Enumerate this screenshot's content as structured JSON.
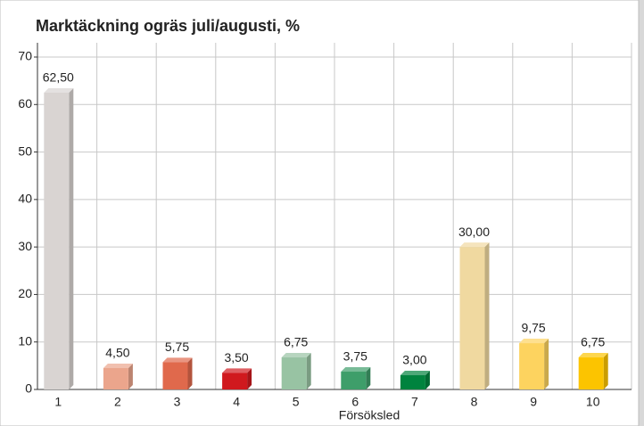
{
  "chart_data": {
    "type": "bar",
    "title": "Marktäckning ogräs juli/augusti, %",
    "x_label": "Försöksled",
    "categories": [
      "1",
      "2",
      "3",
      "4",
      "5",
      "6",
      "7",
      "8",
      "9",
      "10"
    ],
    "values": [
      62.5,
      4.5,
      5.75,
      3.5,
      6.75,
      3.75,
      3.0,
      30.0,
      9.75,
      6.75
    ],
    "value_labels": [
      "62,50",
      "4,50",
      "5,75",
      "3,50",
      "6,75",
      "3,75",
      "3,00",
      "30,00",
      "9,75",
      "6,75"
    ],
    "colors": [
      "#d9d4d2",
      "#eba58c",
      "#e0694c",
      "#d0191e",
      "#98c3a3",
      "#3e9e6a",
      "#00833e",
      "#f0d9a0",
      "#fdd35f",
      "#fcc400"
    ],
    "ylim": [
      0,
      70
    ],
    "yticks": [
      0,
      10,
      20,
      30,
      40,
      50,
      60,
      70
    ],
    "grid": true
  }
}
